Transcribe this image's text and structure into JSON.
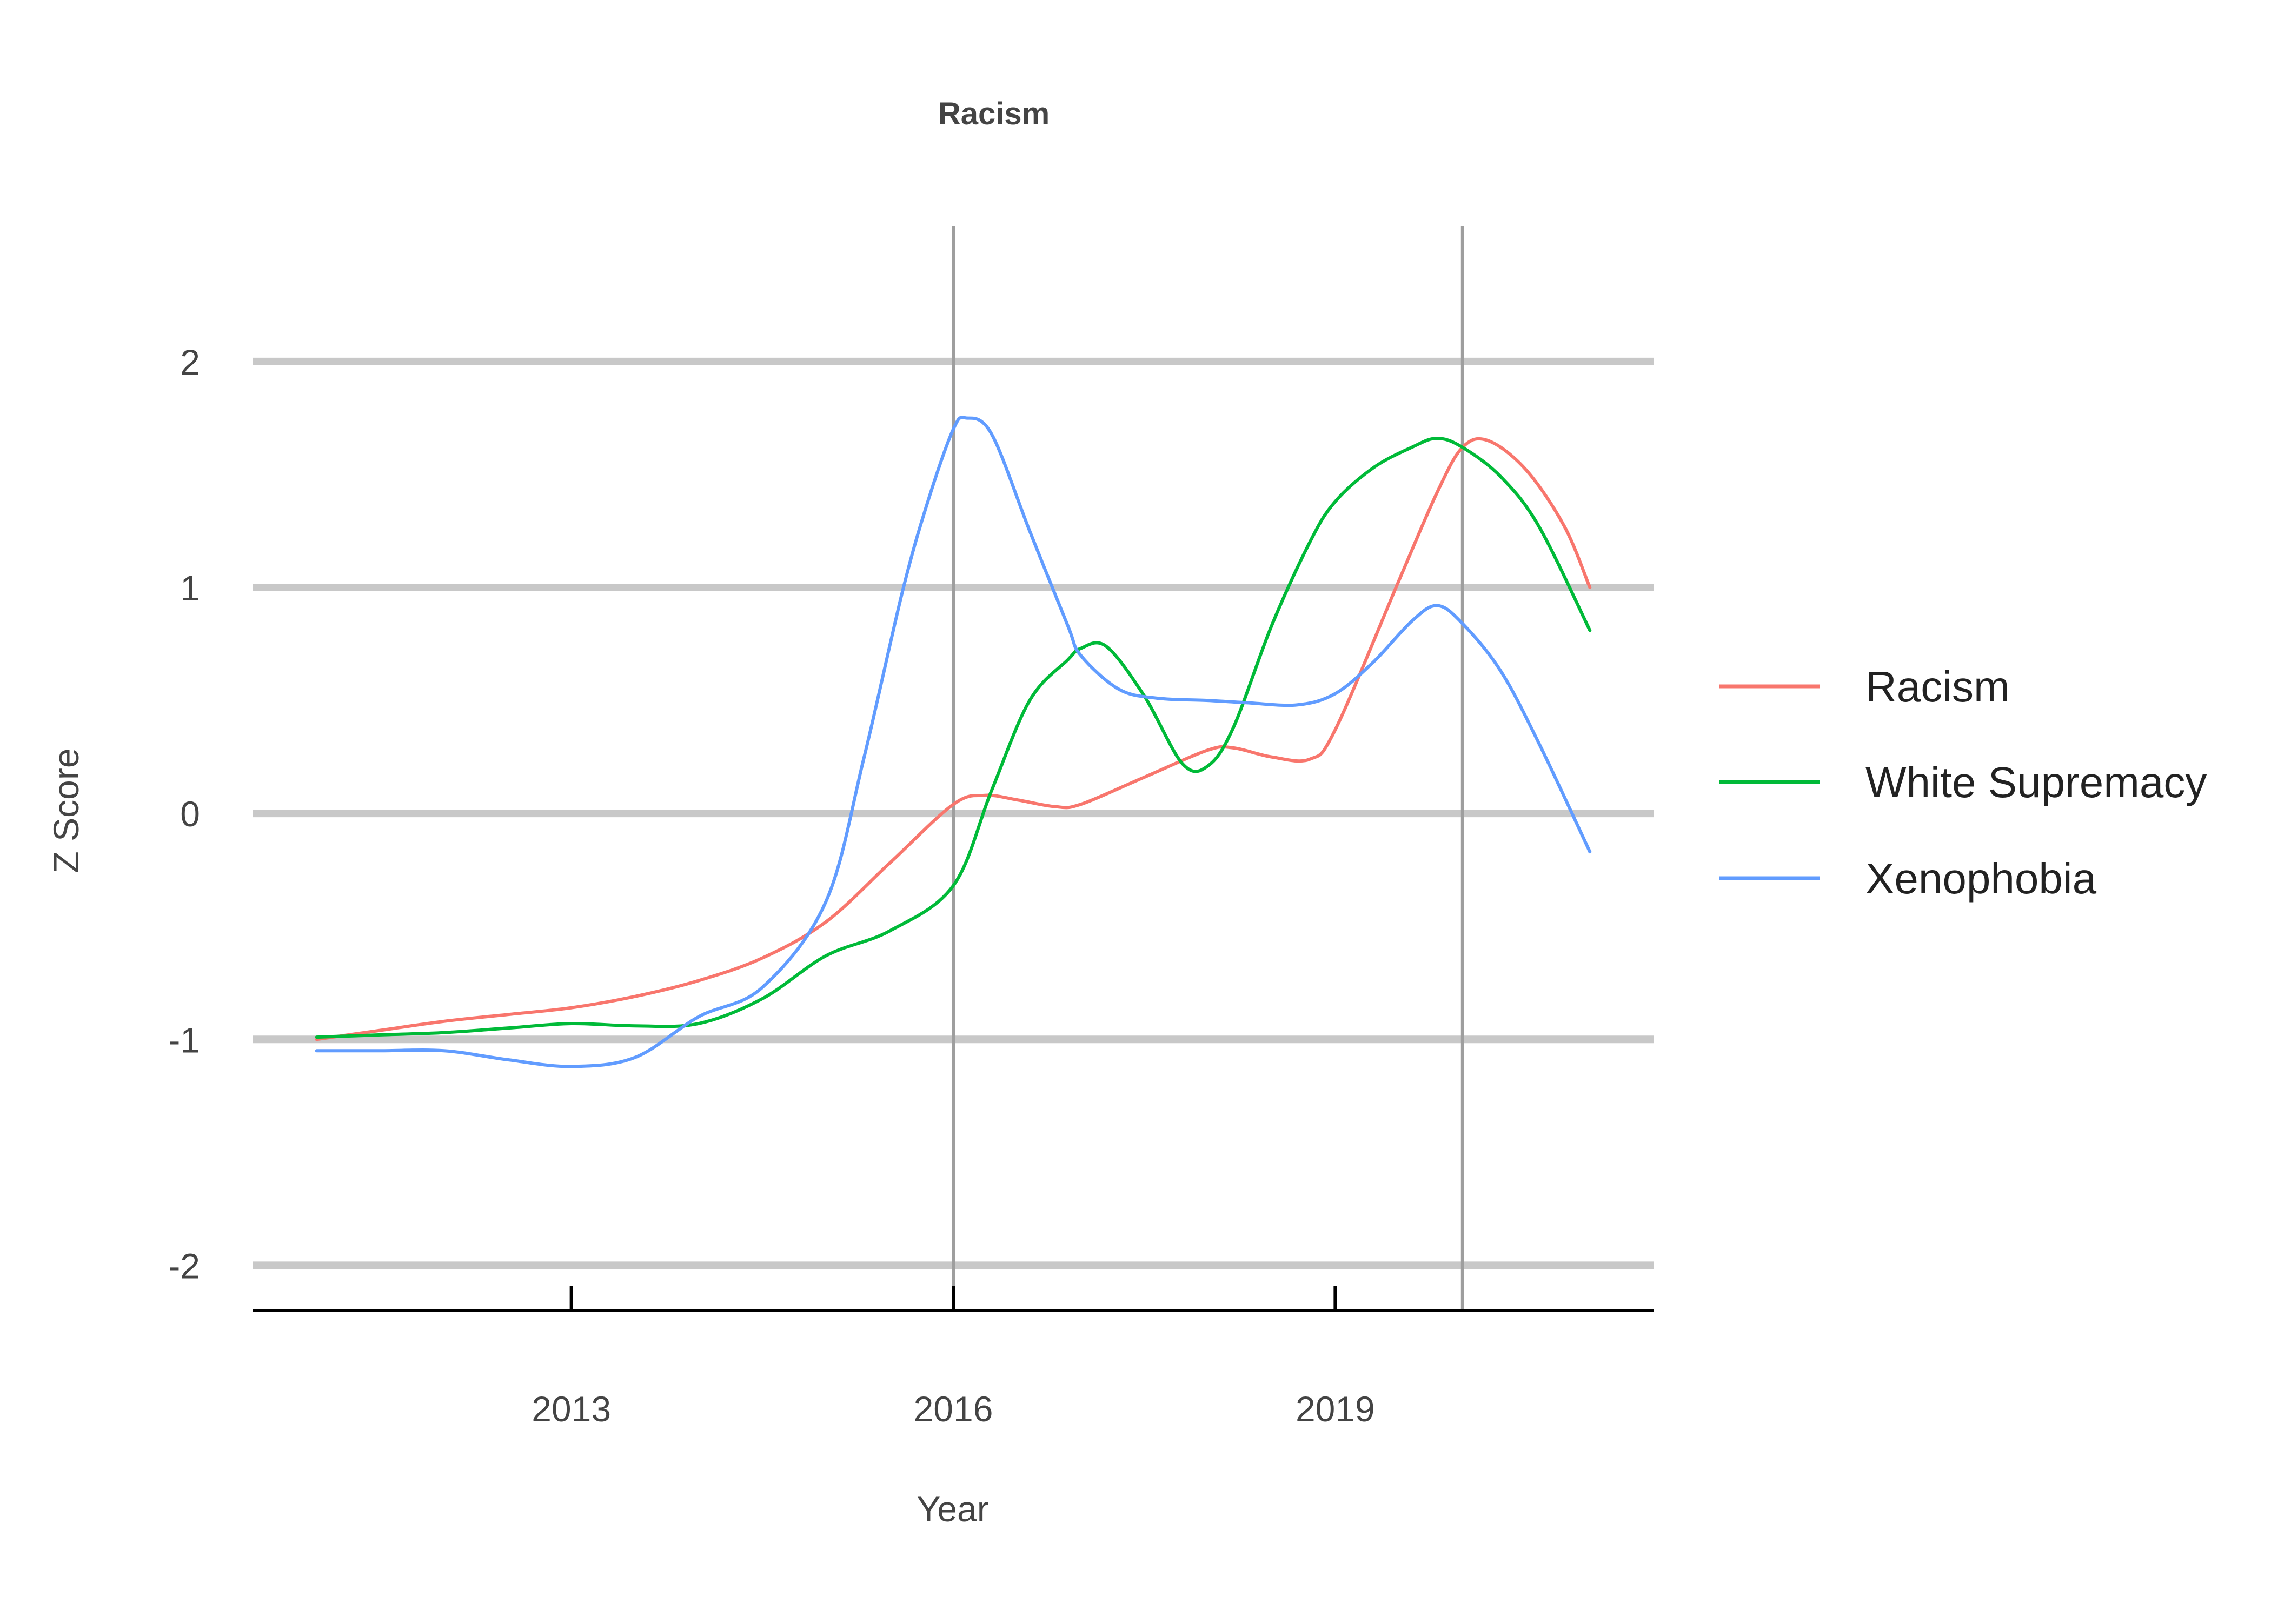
{
  "chart_data": {
    "type": "line",
    "title": "Racism",
    "xlabel": "Year",
    "ylabel": "Z Score",
    "xlim": [
      2010.5,
      2021.5
    ],
    "ylim": [
      -2.2,
      2.6
    ],
    "x_ticks": [
      2013,
      2016,
      2019
    ],
    "x_tick_labels": [
      "2013",
      "2016",
      "2019"
    ],
    "y_ticks": [
      -2,
      -1,
      0,
      1,
      2
    ],
    "y_tick_labels": [
      "-2",
      "-1",
      "0",
      "1",
      "2"
    ],
    "gridlines": "horizontal",
    "vlines": [
      2016,
      2020
    ],
    "legend_position": "right",
    "series": [
      {
        "name": "Racism",
        "color": "#F8766D",
        "x": [
          2011.0,
          2011.5,
          2012.0,
          2012.5,
          2013.0,
          2013.5,
          2014.0,
          2014.5,
          2015.0,
          2015.5,
          2016.0,
          2016.25,
          2016.5,
          2016.8,
          2017.0,
          2017.5,
          2018.0,
          2018.2,
          2018.5,
          2018.8,
          2019.0,
          2019.5,
          2019.8,
          2020.0,
          2020.2,
          2020.5,
          2020.8,
          2021.0
        ],
        "y": [
          -1.0,
          -0.96,
          -0.92,
          -0.89,
          -0.86,
          -0.81,
          -0.74,
          -0.64,
          -0.48,
          -0.22,
          0.04,
          0.08,
          0.06,
          0.03,
          0.04,
          0.16,
          0.28,
          0.29,
          0.25,
          0.24,
          0.37,
          1.03,
          1.42,
          1.62,
          1.65,
          1.52,
          1.27,
          1.0
        ]
      },
      {
        "name": "White Supremacy",
        "color": "#00BA38",
        "x": [
          2011.0,
          2011.5,
          2012.0,
          2012.5,
          2013.0,
          2013.5,
          2014.0,
          2014.5,
          2015.0,
          2015.5,
          2016.0,
          2016.3,
          2016.6,
          2016.9,
          2017.0,
          2017.2,
          2017.5,
          2017.8,
          2018.0,
          2018.2,
          2018.5,
          2018.8,
          2019.0,
          2019.3,
          2019.6,
          2019.8,
          2020.0,
          2020.3,
          2020.6,
          2021.0
        ],
        "y": [
          -0.99,
          -0.98,
          -0.97,
          -0.95,
          -0.93,
          -0.94,
          -0.93,
          -0.82,
          -0.63,
          -0.52,
          -0.32,
          0.1,
          0.5,
          0.68,
          0.73,
          0.74,
          0.52,
          0.22,
          0.21,
          0.38,
          0.83,
          1.2,
          1.38,
          1.53,
          1.62,
          1.66,
          1.62,
          1.49,
          1.27,
          0.81
        ]
      },
      {
        "name": "Xenophobia",
        "color": "#619CFF",
        "x": [
          2011.0,
          2011.5,
          2012.0,
          2012.5,
          2013.0,
          2013.5,
          2014.0,
          2014.5,
          2015.0,
          2015.3,
          2015.6,
          2015.8,
          2016.0,
          2016.1,
          2016.3,
          2016.6,
          2016.9,
          2017.0,
          2017.3,
          2017.6,
          2018.0,
          2018.3,
          2018.7,
          2019.0,
          2019.3,
          2019.6,
          2019.8,
          2020.0,
          2020.3,
          2020.6,
          2021.0
        ],
        "y": [
          -1.05,
          -1.05,
          -1.05,
          -1.09,
          -1.12,
          -1.08,
          -0.9,
          -0.77,
          -0.39,
          0.25,
          0.98,
          1.38,
          1.7,
          1.75,
          1.68,
          1.25,
          0.83,
          0.7,
          0.55,
          0.51,
          0.5,
          0.49,
          0.48,
          0.53,
          0.67,
          0.85,
          0.92,
          0.84,
          0.63,
          0.31,
          -0.17
        ]
      }
    ]
  }
}
